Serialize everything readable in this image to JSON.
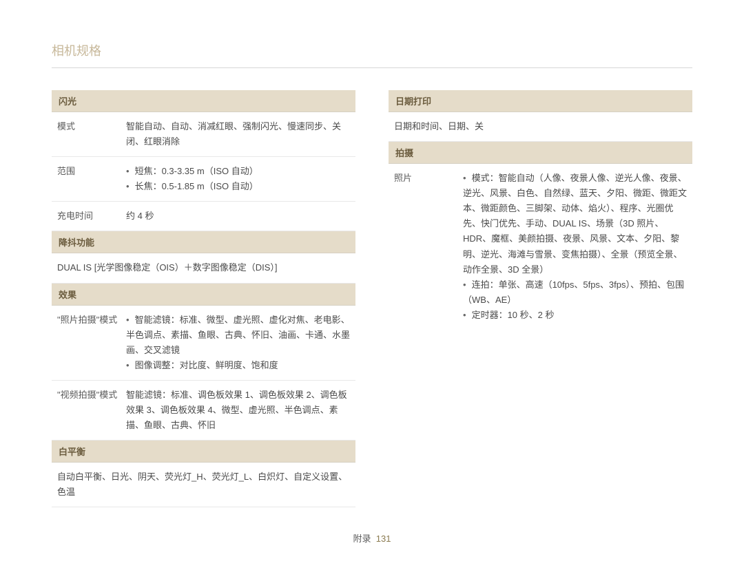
{
  "title": "相机规格",
  "left": {
    "flash": {
      "header": "闪光",
      "rows": [
        {
          "label": "模式",
          "value": "智能自动、自动、消减红眼、强制闪光、慢速同步、关闭、红眼消除"
        },
        {
          "label": "范围",
          "bullets": [
            "短焦：0.3-3.35 m（ISO 自动）",
            "长焦：0.5-1.85 m（ISO 自动）"
          ]
        },
        {
          "label": "充电时间",
          "value": "约 4 秒"
        }
      ]
    },
    "dis": {
      "header": "降抖功能",
      "rows": [
        {
          "full": true,
          "value": "DUAL IS [光学图像稳定（OIS）＋数字图像稳定（DIS）]"
        }
      ]
    },
    "effect": {
      "header": "效果",
      "rows": [
        {
          "label": "\"照片拍摄\"模式",
          "bullets": [
            "智能滤镜：标准、微型、虚光照、虚化对焦、老电影、半色调点、素描、鱼眼、古典、怀旧、油画、卡通、水墨画、交叉滤镜",
            "图像调整：对比度、鲜明度、饱和度"
          ]
        },
        {
          "label": "\"视频拍摄\"模式",
          "value": "智能滤镜：标准、调色板效果 1、调色板效果 2、调色板效果 3、调色板效果 4、微型、虚光照、半色调点、素描、鱼眼、古典、怀旧"
        }
      ]
    },
    "wb": {
      "header": "白平衡",
      "rows": [
        {
          "full": true,
          "value": "自动白平衡、日光、阴天、荧光灯_H、荧光灯_L、白炽灯、自定义设置、色温"
        }
      ]
    }
  },
  "right": {
    "date": {
      "header": "日期打印",
      "rows": [
        {
          "full": true,
          "value": "日期和时间、日期、关"
        }
      ]
    },
    "shoot": {
      "header": "拍摄",
      "rows": [
        {
          "label": "照片",
          "bullets": [
            "模式：智能自动（人像、夜景人像、逆光人像、夜景、逆光、风景、白色、自然绿、蓝天、夕阳、微距、微距文本、微距颜色、三脚架、动体、焰火）、程序、光圈优先、快门优先、手动、DUAL IS、场景（3D 照片、HDR、魔框、美颜拍摄、夜景、风景、文本、夕阳、黎明、逆光、海滩与雪景、变焦拍摄）、全景（预览全景、动作全景、3D 全景）",
            "连拍：单张、高速（10fps、5fps、3fps）、预拍、包围（WB、AE）",
            "定时器：10 秒、2 秒"
          ]
        }
      ]
    }
  },
  "footer": {
    "label": "附录",
    "page": "131"
  }
}
